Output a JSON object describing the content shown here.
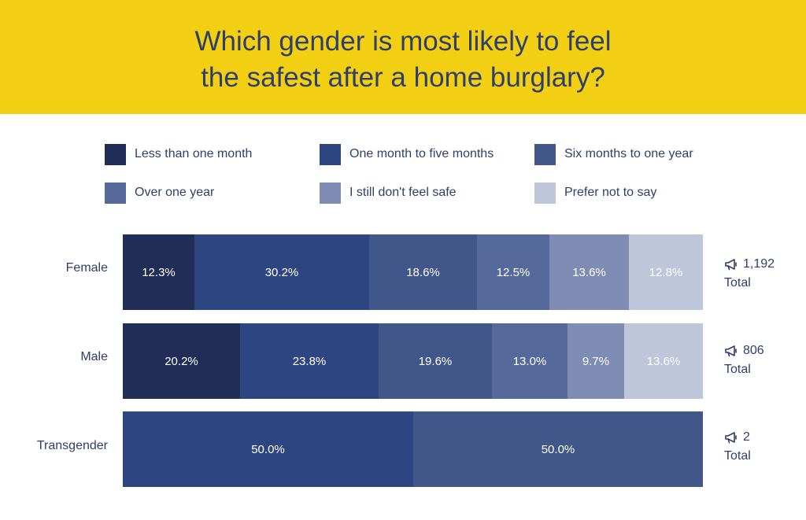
{
  "header": {
    "title_line1": "Which gender is most likely to feel",
    "title_line2": "the safest after a home burglary?"
  },
  "colors": {
    "header_bg": "#f2cf12",
    "series": [
      "#1f2d57",
      "#2d4580",
      "#415689",
      "#55699b",
      "#7f8db5",
      "#bfc6da"
    ]
  },
  "legend": [
    {
      "label": "Less than one month"
    },
    {
      "label": "One month to five months"
    },
    {
      "label": "Six months to one year"
    },
    {
      "label": "Over one year"
    },
    {
      "label": "I still don't feel safe"
    },
    {
      "label": "Prefer not to say"
    }
  ],
  "chart_data": {
    "type": "bar",
    "orientation": "horizontal",
    "stacked": true,
    "title": "Which gender is most likely to feel the safest after a home burglary?",
    "categories": [
      "Female",
      "Male",
      "Transgender"
    ],
    "series": [
      {
        "name": "Less than one month",
        "values": [
          12.3,
          20.2,
          0
        ]
      },
      {
        "name": "One month to five months",
        "values": [
          30.2,
          23.8,
          50.0
        ]
      },
      {
        "name": "Six months to one year",
        "values": [
          18.6,
          19.6,
          50.0
        ]
      },
      {
        "name": "Over one year",
        "values": [
          12.5,
          13.0,
          0
        ]
      },
      {
        "name": "I still don't feel safe",
        "values": [
          13.6,
          9.7,
          0
        ]
      },
      {
        "name": "Prefer not to say",
        "values": [
          12.8,
          13.6,
          0
        ]
      }
    ],
    "value_labels": [
      [
        "12.3%",
        "30.2%",
        "18.6%",
        "12.5%",
        "13.6%",
        "12.8%"
      ],
      [
        "20.2%",
        "23.8%",
        "19.6%",
        "13.0%",
        "9.7%",
        "13.6%"
      ],
      [
        "",
        "50.0%",
        "50.0%",
        "",
        "",
        ""
      ]
    ],
    "totals": [
      {
        "value": "1,192",
        "label": "Total"
      },
      {
        "value": "806",
        "label": "Total"
      },
      {
        "value": "2",
        "label": "Total"
      }
    ],
    "xlim": [
      0,
      100
    ],
    "legend_position": "top",
    "grid": false
  }
}
